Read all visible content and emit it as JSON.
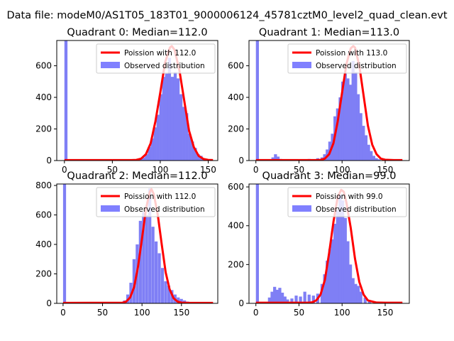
{
  "figure": {
    "suptitle": "Data file: modeM0/AS1T05_183T01_9000006124_45781cztM0_level2_quad_clean.evt"
  },
  "colors": {
    "poisson_line": "#ff0000",
    "histogram": "#7f7ff5",
    "legend_hist": "#8080ff"
  },
  "chart_data": [
    {
      "type": "bar",
      "title": "Quadrant 0: Median=112.0",
      "median": 112.0,
      "xlim": [
        -8,
        160
      ],
      "ylim": [
        0,
        760
      ],
      "xticks": [
        0,
        50,
        100,
        150
      ],
      "yticks": [
        0,
        200,
        400,
        600
      ],
      "bin_width": 3.2,
      "legend": {
        "position": "upper-right",
        "line_label": "Poission with 112.0",
        "hist_label": "Observed distribution"
      },
      "histogram": {
        "bins": [
          0,
          75,
          78,
          81,
          84,
          87,
          90,
          93,
          96,
          99,
          102,
          105,
          108,
          111,
          114,
          117,
          120,
          123,
          126,
          129,
          132,
          135,
          138,
          141,
          144,
          147,
          150
        ],
        "counts": [
          760,
          5,
          10,
          20,
          40,
          85,
          140,
          210,
          290,
          420,
          530,
          550,
          650,
          530,
          560,
          520,
          420,
          340,
          300,
          170,
          120,
          80,
          40,
          30,
          10,
          5,
          3
        ]
      },
      "poisson": {
        "x": [
          0,
          70,
          75,
          80,
          85,
          90,
          95,
          100,
          105,
          110,
          112,
          115,
          120,
          125,
          130,
          135,
          140,
          145,
          150,
          155
        ],
        "y": [
          3,
          3,
          4,
          12,
          40,
          110,
          250,
          430,
          620,
          715,
          725,
          700,
          570,
          380,
          190,
          85,
          30,
          10,
          4,
          3
        ]
      }
    },
    {
      "type": "bar",
      "title": "Quadrant 1: Median=113.0",
      "median": 113.0,
      "xlim": [
        -8,
        178
      ],
      "ylim": [
        0,
        760
      ],
      "xticks": [
        0,
        50,
        100,
        150
      ],
      "yticks": [
        0,
        200,
        400,
        600
      ],
      "bin_width": 3.5,
      "legend": {
        "position": "upper-right",
        "line_label": "Poission with 113.0",
        "hist_label": "Observed distribution"
      },
      "histogram": {
        "bins": [
          0,
          18,
          21,
          24,
          27,
          50,
          60,
          70,
          75,
          78,
          81,
          84,
          87,
          90,
          93,
          96,
          99,
          102,
          105,
          108,
          111,
          114,
          117,
          120,
          123,
          126,
          129,
          132,
          135,
          138,
          141
        ],
        "counts": [
          760,
          20,
          40,
          25,
          10,
          5,
          10,
          15,
          20,
          40,
          70,
          120,
          170,
          280,
          330,
          400,
          500,
          550,
          520,
          480,
          630,
          560,
          420,
          300,
          220,
          160,
          100,
          60,
          30,
          15,
          8
        ]
      },
      "poisson": {
        "x": [
          0,
          70,
          75,
          80,
          85,
          90,
          95,
          100,
          105,
          110,
          113,
          115,
          120,
          125,
          130,
          135,
          140,
          145,
          150,
          160,
          170
        ],
        "y": [
          3,
          3,
          4,
          12,
          40,
          110,
          250,
          430,
          610,
          710,
          725,
          715,
          600,
          410,
          220,
          100,
          40,
          12,
          5,
          3,
          3
        ]
      }
    },
    {
      "type": "bar",
      "title": "Quadrant 2: Median=112.0",
      "median": 112.0,
      "xlim": [
        -8,
        196
      ],
      "ylim": [
        0,
        810
      ],
      "xticks": [
        0,
        50,
        100,
        150
      ],
      "yticks": [
        0,
        200,
        400,
        600,
        800
      ],
      "bin_width": 3.8,
      "legend": {
        "position": "upper-right",
        "line_label": "Poission with 112.0",
        "hist_label": "Observed distribution"
      },
      "histogram": {
        "bins": [
          0,
          76,
          80,
          84,
          88,
          92,
          96,
          100,
          104,
          108,
          112,
          116,
          120,
          124,
          128,
          132,
          136,
          140,
          144,
          148,
          152,
          156,
          160,
          164,
          168,
          172
        ],
        "counts": [
          810,
          20,
          60,
          140,
          300,
          400,
          560,
          620,
          600,
          780,
          520,
          420,
          340,
          240,
          150,
          120,
          90,
          60,
          40,
          30,
          20,
          12,
          8,
          5,
          3,
          2
        ]
      },
      "poisson": {
        "x": [
          0,
          75,
          80,
          85,
          90,
          95,
          100,
          105,
          110,
          112,
          115,
          120,
          125,
          130,
          135,
          140,
          145,
          150,
          160,
          175,
          190
        ],
        "y": [
          3,
          4,
          12,
          40,
          110,
          250,
          440,
          640,
          760,
          775,
          740,
          600,
          400,
          210,
          95,
          35,
          12,
          5,
          3,
          3,
          3
        ]
      }
    },
    {
      "type": "bar",
      "title": "Quadrant 3: Median=99.0",
      "median": 99.0,
      "xlim": [
        -8,
        178
      ],
      "ylim": [
        0,
        615
      ],
      "xticks": [
        0,
        50,
        100,
        150
      ],
      "yticks": [
        0,
        200,
        400,
        600
      ],
      "bin_width": 3.5,
      "legend": {
        "position": "upper-right",
        "line_label": "Poission with 99.0",
        "hist_label": "Observed distribution"
      },
      "histogram": {
        "bins": [
          0,
          14,
          17,
          20,
          23,
          26,
          29,
          32,
          35,
          40,
          45,
          50,
          55,
          60,
          65,
          70,
          75,
          78,
          81,
          84,
          87,
          90,
          93,
          96,
          99,
          102,
          105,
          108,
          111,
          114,
          117,
          120,
          125,
          130
        ],
        "counts": [
          615,
          30,
          60,
          85,
          70,
          80,
          55,
          35,
          20,
          25,
          40,
          35,
          60,
          45,
          40,
          50,
          100,
          150,
          220,
          280,
          330,
          410,
          480,
          560,
          530,
          440,
          320,
          200,
          130,
          100,
          90,
          60,
          30,
          15
        ]
      },
      "poisson": {
        "x": [
          0,
          60,
          65,
          70,
          75,
          80,
          85,
          90,
          95,
          99,
          102,
          105,
          110,
          115,
          120,
          125,
          130,
          140,
          150,
          160,
          170
        ],
        "y": [
          3,
          3,
          5,
          15,
          45,
          120,
          260,
          420,
          550,
          585,
          575,
          520,
          390,
          230,
          110,
          45,
          15,
          4,
          3,
          3,
          3
        ]
      }
    }
  ]
}
